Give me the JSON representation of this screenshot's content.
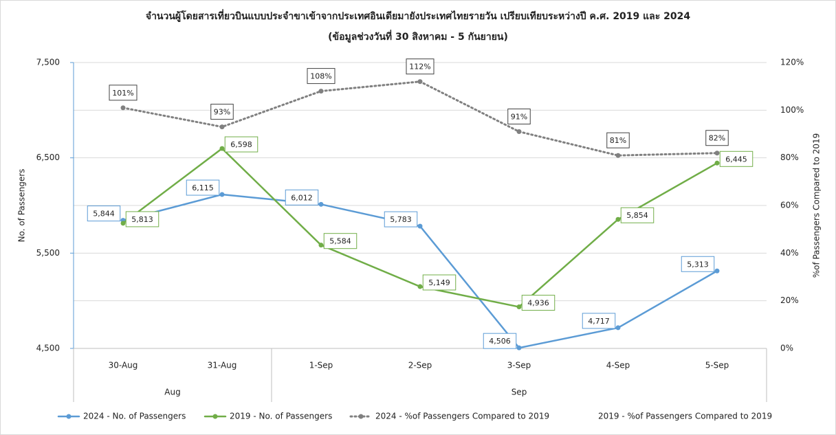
{
  "chart_data": {
    "type": "line",
    "title": "จำนวนผู้โดยสารเที่ยวบินแบบประจำขาเข้าจากประเทศอินเดียมายังประเทศไทยรายวัน เปรียบเทียบระหว่างปี ค.ศ. 2019 และ 2024",
    "subtitle": "(ข้อมูลช่วงวันที่ 30 สิงหาคม - 5 กันยายน)",
    "y_label": "No. of Passengers",
    "y2_label": "%of Passengers Compared to 2019",
    "categories": [
      "30-Aug",
      "31-Aug",
      "1-Sep",
      "2-Sep",
      "3-Sep",
      "4-Sep",
      "5-Sep"
    ],
    "category_groups": [
      "Aug",
      "Sep"
    ],
    "ylim": [
      4500,
      7500
    ],
    "yticks": [
      {
        "value": 4500,
        "label": "4,500"
      },
      {
        "value": 5500,
        "label": "5,500"
      },
      {
        "value": 6500,
        "label": "6,500"
      },
      {
        "value": 7500,
        "label": "7,500"
      }
    ],
    "y2lim": [
      0,
      120
    ],
    "y2ticks": [
      {
        "value": 0,
        "label": "0%"
      },
      {
        "value": 20,
        "label": "20%"
      },
      {
        "value": 40,
        "label": "40%"
      },
      {
        "value": 60,
        "label": "60%"
      },
      {
        "value": 80,
        "label": "80%"
      },
      {
        "value": 100,
        "label": "100%"
      },
      {
        "value": 120,
        "label": "120%"
      }
    ],
    "grid": true,
    "legend": "bottom",
    "series": [
      {
        "name": "2024 - No. of Passengers",
        "color": "#5b9bd5",
        "values": [
          5844,
          6115,
          6012,
          5783,
          4506,
          4717,
          5313
        ],
        "value_labels": [
          "5,844",
          "6,115",
          "6,012",
          "5,783",
          "4,506",
          "4,717",
          "5,313"
        ]
      },
      {
        "name": "2019 - No. of Passengers",
        "color": "#70ad47",
        "values": [
          5813,
          6598,
          5584,
          5149,
          4936,
          5854,
          6445
        ],
        "value_labels": [
          "5,813",
          "6,598",
          "5,584",
          "5,149",
          "4,936",
          "5,854",
          "6,445"
        ]
      },
      {
        "name": "2024 - %of Passengers Compared to 2019",
        "color": "#808080",
        "dashed": true,
        "axis": "y2",
        "values": [
          101,
          93,
          108,
          112,
          91,
          81,
          82
        ],
        "value_labels": [
          "101%",
          "93%",
          "108%",
          "112%",
          "91%",
          "81%",
          "82%"
        ]
      },
      {
        "name": "2019 - %of Passengers Compared to 2019",
        "axis": "y2",
        "values": [
          null,
          null,
          null,
          null,
          null,
          null,
          null
        ]
      }
    ]
  }
}
